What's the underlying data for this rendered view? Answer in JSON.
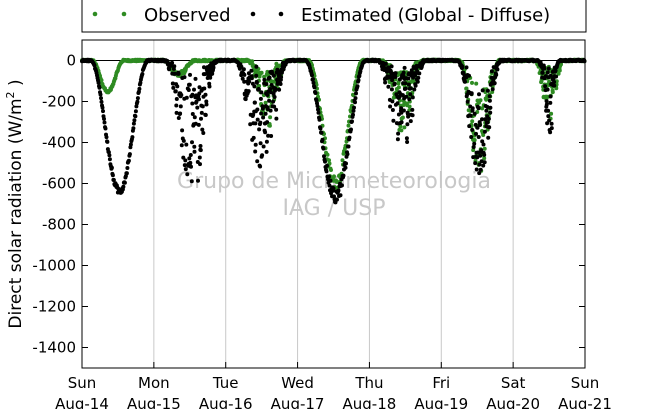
{
  "chart_data": {
    "type": "scatter",
    "ylabel": "Direct solar radiation (W/m",
    "ylabel_sup": "2",
    "ylabel_tail": " )",
    "ylim": [
      -1500,
      100
    ],
    "yticks": [
      0,
      -200,
      -400,
      -600,
      -800,
      -1000,
      -1200,
      -1400
    ],
    "xlim": [
      0,
      7
    ],
    "xticks": [
      {
        "day": 0,
        "line1": "Sun",
        "line2": "Aug-14"
      },
      {
        "day": 1,
        "line1": "Mon",
        "line2": "Aug-15"
      },
      {
        "day": 2,
        "line1": "Tue",
        "line2": "Aug-16"
      },
      {
        "day": 3,
        "line1": "Wed",
        "line2": "Aug-17"
      },
      {
        "day": 4,
        "line1": "Thu",
        "line2": "Aug-18"
      },
      {
        "day": 5,
        "line1": "Fri",
        "line2": "Aug-19"
      },
      {
        "day": 6,
        "line1": "Sat",
        "line2": "Aug-20"
      },
      {
        "day": 7,
        "line1": "Sun",
        "line2": "Aug-21"
      }
    ],
    "grid": "vertical",
    "legend_placement": "top",
    "watermark": [
      "Grupo de Micrometeorologia",
      "IAG / USP"
    ],
    "series": [
      {
        "name": "Observed",
        "color": "#2e8b22",
        "days": [
          {
            "day": 0,
            "shape": "smooth",
            "peak": -160,
            "offset": 0.36,
            "width": 0.22,
            "noise": 0.08
          },
          {
            "day": 1,
            "shape": "smooth",
            "peak": -80,
            "offset": 0.35,
            "width": 0.22,
            "noise": 0.3
          },
          {
            "day": 2,
            "shape": "noisy",
            "peak": -330,
            "offset": 0.58,
            "width": 0.28,
            "noise": 1.0
          },
          {
            "day": 3,
            "shape": "smooth",
            "peak": -640,
            "offset": 0.53,
            "width": 0.38,
            "noise": 0.12
          },
          {
            "day": 4,
            "shape": "noisy",
            "peak": -360,
            "offset": 0.45,
            "width": 0.3,
            "noise": 1.0
          },
          {
            "day": 5,
            "shape": "noisy",
            "peak": -560,
            "offset": 0.53,
            "width": 0.28,
            "noise": 0.6
          },
          {
            "day": 6,
            "shape": "noisy",
            "peak": -300,
            "offset": 0.5,
            "width": 0.2,
            "noise": 1.0
          }
        ]
      },
      {
        "name": "Estimated (Global - Diffuse)",
        "color": "#000000",
        "days": [
          {
            "day": 0,
            "shape": "smooth",
            "peak": -655,
            "offset": 0.52,
            "width": 0.4,
            "noise": 0.05
          },
          {
            "day": 1,
            "shape": "noisy",
            "peak": -610,
            "offset": 0.52,
            "width": 0.38,
            "noise": 1.0
          },
          {
            "day": 2,
            "shape": "noisy",
            "peak": -540,
            "offset": 0.5,
            "width": 0.38,
            "noise": 1.0
          },
          {
            "day": 3,
            "shape": "smooth",
            "peak": -700,
            "offset": 0.53,
            "width": 0.42,
            "noise": 0.1
          },
          {
            "day": 4,
            "shape": "noisy",
            "peak": -430,
            "offset": 0.45,
            "width": 0.34,
            "noise": 1.0
          },
          {
            "day": 5,
            "shape": "noisy",
            "peak": -590,
            "offset": 0.53,
            "width": 0.3,
            "noise": 0.7
          },
          {
            "day": 6,
            "shape": "noisy",
            "peak": -360,
            "offset": 0.5,
            "width": 0.16,
            "noise": 1.0
          }
        ]
      }
    ]
  }
}
